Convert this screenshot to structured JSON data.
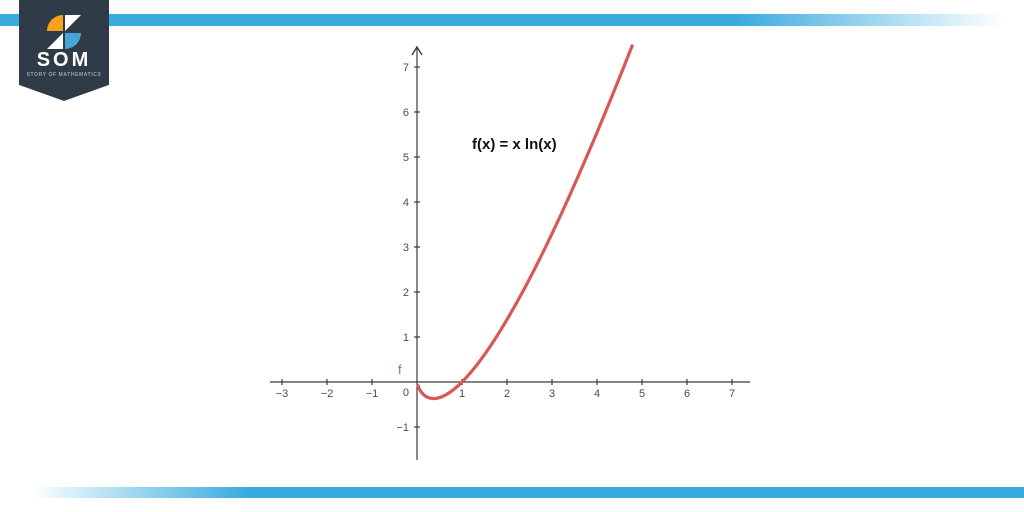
{
  "branding": {
    "logo_text": "SOM",
    "logo_subtext": "STORY OF MATHEMATICS",
    "badge_color": "#2f3c48",
    "icon_orange": "#f6a21d",
    "icon_blue": "#45a5d9",
    "icon_white": "#ffffff",
    "stripe_color": "#3babdf"
  },
  "chart_data": {
    "type": "line",
    "title": "f(x) = x ln(x)",
    "curve_label": "f",
    "curve_color": "#d95757",
    "axis_color": "#3b3b3b",
    "tick_label_color": "#4c4c4c",
    "grid": false,
    "legend": "none",
    "xlim": [
      -3.27,
      7.4
    ],
    "ylim": [
      -1.73,
      7.42
    ],
    "x_ticks": [
      -3,
      -2,
      -1,
      1,
      2,
      3,
      4,
      5,
      6,
      7
    ],
    "y_ticks": [
      -1,
      1,
      2,
      3,
      4,
      5,
      6,
      7
    ],
    "origin_label": "0",
    "series": [
      {
        "name": "f",
        "function": "f(x) = x ln(x)",
        "points": [
          [
            0.02,
            -0.078
          ],
          [
            0.05,
            -0.15
          ],
          [
            0.1,
            -0.23
          ],
          [
            0.15,
            -0.285
          ],
          [
            0.2,
            -0.322
          ],
          [
            0.25,
            -0.347
          ],
          [
            0.3,
            -0.361
          ],
          [
            0.368,
            -0.368
          ],
          [
            0.45,
            -0.359
          ],
          [
            0.55,
            -0.329
          ],
          [
            0.65,
            -0.28
          ],
          [
            0.75,
            -0.216
          ],
          [
            0.85,
            -0.138
          ],
          [
            0.95,
            -0.049
          ],
          [
            1,
            0
          ],
          [
            1.1,
            0.105
          ],
          [
            1.2,
            0.219
          ],
          [
            1.35,
            0.405
          ],
          [
            1.5,
            0.608
          ],
          [
            1.65,
            0.826
          ],
          [
            1.8,
            1.058
          ],
          [
            2,
            1.386
          ],
          [
            2.2,
            1.735
          ],
          [
            2.4,
            2.101
          ],
          [
            2.6,
            2.484
          ],
          [
            2.8,
            2.883
          ],
          [
            3,
            3.296
          ],
          [
            3.2,
            3.723
          ],
          [
            3.4,
            4.162
          ],
          [
            3.6,
            4.613
          ],
          [
            3.8,
            5.075
          ],
          [
            4,
            5.545
          ],
          [
            4.2,
            6.026
          ],
          [
            4.4,
            6.516
          ],
          [
            4.6,
            7.014
          ],
          [
            4.78,
            7.47
          ]
        ]
      }
    ]
  }
}
